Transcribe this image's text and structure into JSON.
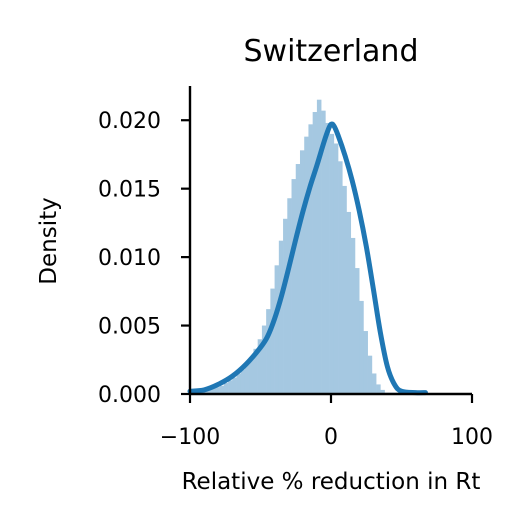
{
  "chart_data": {
    "type": "histogram-kde",
    "title": "Switzerland",
    "xlabel": "Relative % reduction in Rt",
    "ylabel": "Density",
    "xlim": [
      -100,
      100
    ],
    "ylim": [
      0,
      0.0225
    ],
    "xticks": [
      -100,
      0,
      100
    ],
    "xtick_labels": [
      "−100",
      "0",
      "100"
    ],
    "yticks": [
      0,
      0.005,
      0.01,
      0.015,
      0.02
    ],
    "ytick_labels": [
      "0.000",
      "0.005",
      "0.010",
      "0.015",
      "0.020"
    ],
    "grid": false,
    "legend": false,
    "colors": {
      "histogram": "#a5c8e1",
      "kde": "#1f77b4"
    },
    "histogram": {
      "bin_width": 3,
      "bin_start": -100,
      "densities": [
        0.0003,
        0.0003,
        0.0003,
        0.0003,
        0.0004,
        0.0004,
        0.0005,
        0.0006,
        0.0008,
        0.001,
        0.0012,
        0.0015,
        0.0018,
        0.0022,
        0.0027,
        0.0033,
        0.004,
        0.005,
        0.0062,
        0.0077,
        0.0094,
        0.0112,
        0.0128,
        0.0143,
        0.0157,
        0.0168,
        0.0178,
        0.0188,
        0.0197,
        0.0206,
        0.0215,
        0.0207,
        0.0198,
        0.019,
        0.0183,
        0.017,
        0.0152,
        0.0133,
        0.0114,
        0.0092,
        0.0068,
        0.0046,
        0.0028,
        0.0015,
        0.0007,
        0.0003,
        0.0001,
        0.0001,
        0.0001,
        0.0001,
        0.0001,
        0.0001,
        0.0001,
        0.0001,
        0.0001,
        0.0001
      ]
    },
    "kde": {
      "x": [
        -100,
        -90,
        -80,
        -70,
        -60,
        -50,
        -45,
        -40,
        -35,
        -30,
        -25,
        -20,
        -15,
        -10,
        -5,
        -2,
        0,
        2,
        5,
        10,
        15,
        20,
        25,
        30,
        35,
        40,
        45,
        50,
        60,
        67
      ],
      "y": [
        0.0002,
        0.0003,
        0.0007,
        0.0013,
        0.0022,
        0.0034,
        0.0042,
        0.0055,
        0.0072,
        0.0092,
        0.0113,
        0.0133,
        0.0151,
        0.0167,
        0.0184,
        0.0193,
        0.0197,
        0.0196,
        0.0189,
        0.0174,
        0.0156,
        0.0134,
        0.0108,
        0.0077,
        0.0045,
        0.002,
        0.0007,
        0.0002,
        0.0001,
        0.0001
      ]
    }
  }
}
